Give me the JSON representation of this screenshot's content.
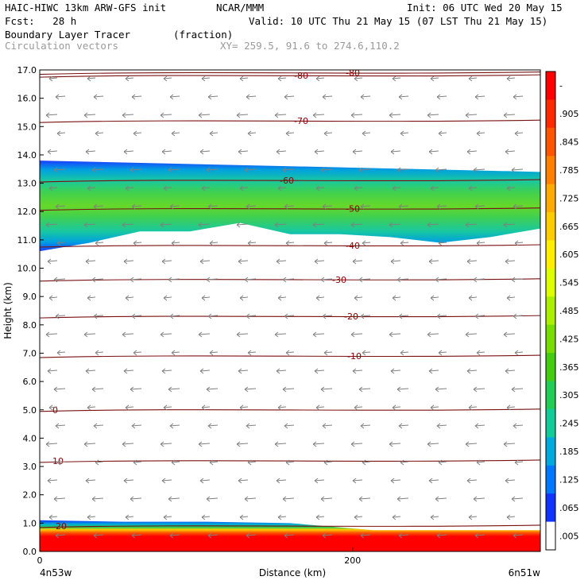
{
  "header": {
    "model": "HAIC-HIWC 13km ARW-GFS init",
    "org": "NCAR/MMM",
    "init": "Init: 06 UTC Wed 20 May 15",
    "fcst": "Fcst:   28 h",
    "valid": "Valid: 10 UTC Thu 21 May 15 (07 LST Thu 21 May 15)",
    "field": "Boundary Layer Tracer",
    "units": "(fraction)",
    "vectors": "Circulation vectors",
    "xy": "XY= 259.5, 91.6 to 274.6,110.2"
  },
  "chart_data": {
    "type": "heatmap",
    "title": "Boundary Layer Tracer",
    "ylabel": "Height (km)",
    "xlabel": "Distance (km)",
    "ylim": [
      0,
      17
    ],
    "xlim": [
      0,
      320
    ],
    "yticks": [
      "0.0",
      "1.0",
      "2.0",
      "3.0",
      "4.0",
      "5.0",
      "6.0",
      "7.0",
      "8.0",
      "9.0",
      "10.0",
      "11.0",
      "12.0",
      "13.0",
      "14.0",
      "15.0",
      "16.0",
      "17.0"
    ],
    "xticks": [
      {
        "value": 0,
        "label": "0"
      },
      {
        "value": 200,
        "label": "200"
      }
    ],
    "x_endpoints": {
      "left": "4n53w",
      "right": "6n51w"
    },
    "colorbar": {
      "labels": [
        "-",
        ".905",
        ".845",
        ".785",
        ".725",
        ".665",
        ".605",
        ".545",
        ".485",
        ".425",
        ".365",
        ".305",
        ".245",
        ".185",
        ".125",
        ".065",
        ".005"
      ],
      "colors": [
        "#ff0000",
        "#ff2a00",
        "#ff5500",
        "#ff8000",
        "#ffaa00",
        "#ffcc00",
        "#ffee00",
        "#ddff00",
        "#aaee00",
        "#77dd00",
        "#44cc10",
        "#22cc55",
        "#11cc99",
        "#00aadd",
        "#0077ff",
        "#1133ff",
        "#ffffff"
      ]
    },
    "tracer_regions": [
      {
        "name": "upper",
        "bottom_km": [
          10.6,
          10.9,
          11.3,
          11.3,
          11.6,
          11.2,
          11.2,
          11.1,
          10.9,
          11.1,
          11.4
        ],
        "top_km": 13.8,
        "core_km": 12.3
      },
      {
        "name": "boundary",
        "top_km": [
          1.1,
          1.05,
          1.05,
          1.0,
          0.75,
          0.75,
          0.75
        ],
        "value": 0.95
      }
    ],
    "temperature_contours": [
      {
        "label": "-80",
        "km": 16.8
      },
      {
        "label": "-70",
        "km": 15.2
      },
      {
        "label": "-60",
        "km": 13.1
      },
      {
        "label": "-50",
        "km": 12.1
      },
      {
        "label": "-40",
        "km": 10.8
      },
      {
        "label": "-30",
        "km": 9.6
      },
      {
        "label": "-20",
        "km": 8.3
      },
      {
        "label": "-10",
        "km": 6.9
      },
      {
        "label": "0",
        "km": 5.0
      },
      {
        "label": "10",
        "km": 3.2
      },
      {
        "label": "20",
        "km": 0.9
      },
      {
        "label": "-80",
        "km": 16.9
      }
    ],
    "contour_label_colour": "#8b0000",
    "contour_colour": "#7a1010",
    "vector_colour": "#808080"
  }
}
